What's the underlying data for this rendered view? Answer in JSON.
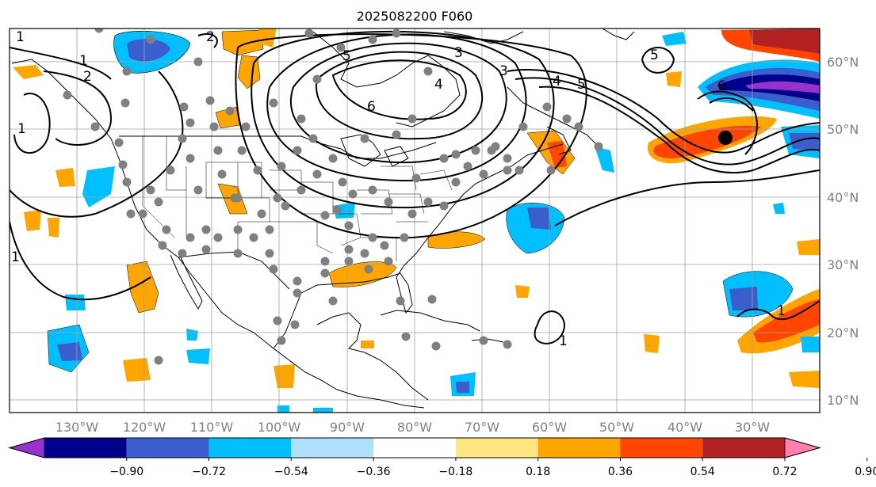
{
  "title": "2025082200 F060",
  "lon_labels": [
    "130°W",
    "120°W",
    "110°W",
    "100°W",
    "90°W",
    "80°W",
    "70°W",
    "60°W",
    "50°W",
    "40°W",
    "30°W"
  ],
  "lat_labels": [
    "60°N",
    "50°N",
    "40°N",
    "30°N",
    "20°N",
    "10°N"
  ],
  "colorbar": {
    "tick_labels": [
      "−0.90",
      "−0.72",
      "−0.54",
      "−0.36",
      "−0.18",
      "0.18",
      "0.36",
      "0.54",
      "0.72",
      "0.90"
    ],
    "colors": [
      "#9932cc",
      "#00008b",
      "#3a5fcd",
      "#00bfff",
      "#b0e0ff",
      "#ffffff",
      "#ffe680",
      "#ffa500",
      "#ff4500",
      "#b22222",
      "#ff80b0"
    ]
  },
  "contour_labels": [
    "1",
    "2",
    "3",
    "4",
    "5",
    "6"
  ],
  "colors": {
    "gridline": "#a0a0a0",
    "tick_label": "#808080",
    "coastline": "#000000",
    "station_dot": "#808080",
    "marker": "#000000"
  }
}
